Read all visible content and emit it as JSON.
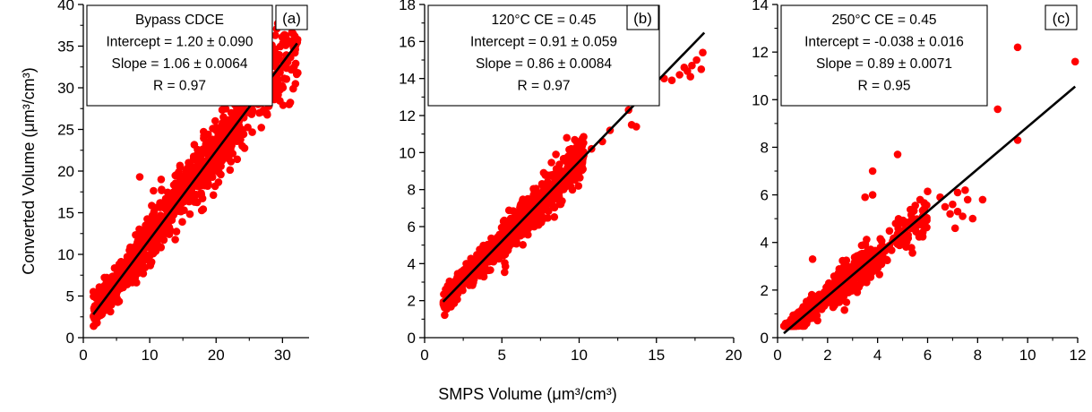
{
  "figure": {
    "y_axis_title": "Converted Volume (μm³/cm³)",
    "x_axis_title": "SMPS Volume (μm³/cm³)"
  },
  "colors": {
    "points": "#ff0000",
    "fit_line": "#000000",
    "axes": "#000000"
  },
  "chart_data": [
    {
      "type": "scatter",
      "panel_label": "(a)",
      "annotation": [
        "Bypass CDCE",
        "Intercept = 1.20 ± 0.090",
        "Slope = 1.06 ± 0.0064",
        "R = 0.97"
      ],
      "xlim": [
        0,
        34
      ],
      "ylim": [
        0,
        40
      ],
      "x_ticks": [
        0,
        10,
        20,
        30
      ],
      "x_tick_labels": [
        "0",
        "10",
        "20",
        "30"
      ],
      "y_ticks": [
        0,
        5,
        10,
        15,
        20,
        25,
        30,
        35,
        40
      ],
      "y_tick_labels": [
        "0",
        "5",
        "10",
        "15",
        "20",
        "25",
        "30",
        "35",
        "40"
      ],
      "fit": {
        "intercept": 1.2,
        "slope": 1.06,
        "x_range": [
          1.5,
          32.2
        ]
      },
      "cloud": [
        {
          "x0": 1.5,
          "x1": 9,
          "n": 320,
          "spread": 1.0
        },
        {
          "x0": 9,
          "x1": 24,
          "n": 560,
          "spread": 1.7
        },
        {
          "x0": 24,
          "x1": 32.3,
          "n": 190,
          "spread": 2.3
        }
      ],
      "outliers": [
        [
          8.5,
          19.3
        ],
        [
          29.2,
          34.0
        ],
        [
          32.3,
          31.8
        ],
        [
          31.0,
          28.0
        ],
        [
          25.0,
          32.2
        ],
        [
          8.0,
          6.6
        ]
      ],
      "grid": false
    },
    {
      "type": "scatter",
      "panel_label": "(b)",
      "annotation": [
        "120°C CE = 0.45",
        "Intercept = 0.91 ± 0.059",
        "Slope = 0.86 ± 0.0084",
        "R = 0.97"
      ],
      "xlim": [
        0,
        20
      ],
      "ylim": [
        0,
        18
      ],
      "x_ticks": [
        0,
        5,
        10,
        15,
        20
      ],
      "x_tick_labels": [
        "0",
        "5",
        "10",
        "15",
        "20"
      ],
      "y_ticks": [
        0,
        2,
        4,
        6,
        8,
        10,
        12,
        14,
        16,
        18
      ],
      "y_tick_labels": [
        "0",
        "2",
        "4",
        "6",
        "8",
        "10",
        "12",
        "14",
        "16",
        "18"
      ],
      "fit": {
        "intercept": 0.91,
        "slope": 0.86,
        "x_range": [
          1.2,
          18.1
        ]
      },
      "cloud": [
        {
          "x0": 1.2,
          "x1": 5,
          "n": 300,
          "spread": 0.35
        },
        {
          "x0": 5,
          "x1": 10.3,
          "n": 520,
          "spread": 0.55
        }
      ],
      "outliers": [
        [
          10.8,
          10.2
        ],
        [
          11.5,
          10.6
        ],
        [
          12.0,
          11.2
        ],
        [
          13.2,
          12.3
        ],
        [
          13.4,
          11.5
        ],
        [
          13.7,
          11.4
        ],
        [
          15.5,
          14.0
        ],
        [
          16.0,
          13.9
        ],
        [
          16.5,
          14.2
        ],
        [
          17.0,
          14.4
        ],
        [
          17.3,
          14.7
        ],
        [
          17.6,
          15.0
        ],
        [
          18.0,
          15.4
        ],
        [
          17.9,
          14.5
        ],
        [
          17.2,
          14.1
        ],
        [
          16.8,
          14.6
        ],
        [
          9.2,
          10.8
        ],
        [
          9.5,
          10.2
        ],
        [
          8.5,
          9.9
        ]
      ],
      "grid": false
    },
    {
      "type": "scatter",
      "panel_label": "(c)",
      "annotation": [
        "250°C CE = 0.45",
        "Intercept = -0.038 ± 0.016",
        "Slope = 0.89 ± 0.0071",
        "R = 0.95"
      ],
      "xlim": [
        0,
        12
      ],
      "ylim": [
        0,
        14
      ],
      "x_ticks": [
        0,
        2,
        4,
        6,
        8,
        10,
        12
      ],
      "x_tick_labels": [
        "0",
        "2",
        "4",
        "6",
        "8",
        "10",
        "12"
      ],
      "y_ticks": [
        0,
        2,
        4,
        6,
        8,
        10,
        12,
        14
      ],
      "y_tick_labels": [
        "0",
        "2",
        "4",
        "6",
        "8",
        "10",
        "12",
        "14"
      ],
      "fit": {
        "intercept": -0.038,
        "slope": 0.89,
        "x_range": [
          0.25,
          11.9
        ]
      },
      "cloud": [
        {
          "x0": 0.25,
          "x1": 2.2,
          "n": 380,
          "spread": 0.2
        },
        {
          "x0": 2.2,
          "x1": 4.2,
          "n": 360,
          "spread": 0.35
        },
        {
          "x0": 4.2,
          "x1": 6.0,
          "n": 70,
          "spread": 0.4
        }
      ],
      "outliers": [
        [
          1.4,
          3.3
        ],
        [
          3.5,
          5.9
        ],
        [
          3.8,
          6.0
        ],
        [
          3.8,
          7.0
        ],
        [
          4.8,
          7.7
        ],
        [
          5.7,
          5.8
        ],
        [
          6.5,
          5.9
        ],
        [
          6.7,
          5.5
        ],
        [
          7.0,
          5.6
        ],
        [
          7.1,
          4.6
        ],
        [
          7.2,
          6.1
        ],
        [
          7.4,
          5.1
        ],
        [
          7.6,
          5.8
        ],
        [
          7.8,
          5.0
        ],
        [
          8.2,
          5.8
        ],
        [
          8.8,
          9.6
        ],
        [
          9.6,
          12.2
        ],
        [
          9.6,
          8.3
        ],
        [
          11.9,
          11.6
        ],
        [
          7.5,
          6.2
        ],
        [
          7.2,
          5.3
        ],
        [
          6.9,
          5.2
        ]
      ],
      "grid": false
    }
  ]
}
